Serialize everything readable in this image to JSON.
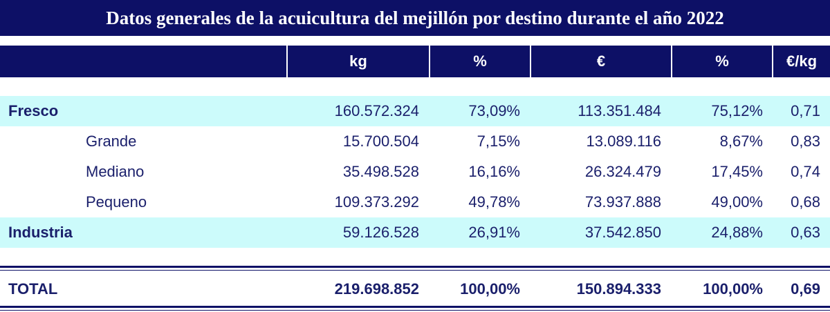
{
  "chart_data": {
    "type": "table",
    "title": "Datos generales de la acuicultura del mejillón por destino durante el año 2022",
    "columns": [
      "",
      "kg",
      "%",
      "€",
      "%",
      "€/kg"
    ],
    "rows": [
      {
        "label": "Fresco",
        "level": 0,
        "highlight": true,
        "values": [
          "160.572.324",
          "73,09%",
          "113.351.484",
          "75,12%",
          "0,71"
        ]
      },
      {
        "label": "Grande",
        "level": 1,
        "highlight": false,
        "values": [
          "15.700.504",
          "7,15%",
          "13.089.116",
          "8,67%",
          "0,83"
        ]
      },
      {
        "label": "Mediano",
        "level": 1,
        "highlight": false,
        "values": [
          "35.498.528",
          "16,16%",
          "26.324.479",
          "17,45%",
          "0,74"
        ]
      },
      {
        "label": "Pequeno",
        "level": 1,
        "highlight": false,
        "values": [
          "109.373.292",
          "49,78%",
          "73.937.888",
          "49,00%",
          "0,68"
        ]
      },
      {
        "label": "Industria",
        "level": 0,
        "highlight": true,
        "values": [
          "59.126.528",
          "26,91%",
          "37.542.850",
          "24,88%",
          "0,63"
        ]
      }
    ],
    "total": {
      "label": "TOTAL",
      "values": [
        "219.698.852",
        "100,00%",
        "150.894.333",
        "100,00%",
        "0,69"
      ]
    }
  },
  "colors": {
    "header_bg": "#0d1066",
    "highlight_bg": "#ccfbfb",
    "text": "#1a1f6b"
  }
}
